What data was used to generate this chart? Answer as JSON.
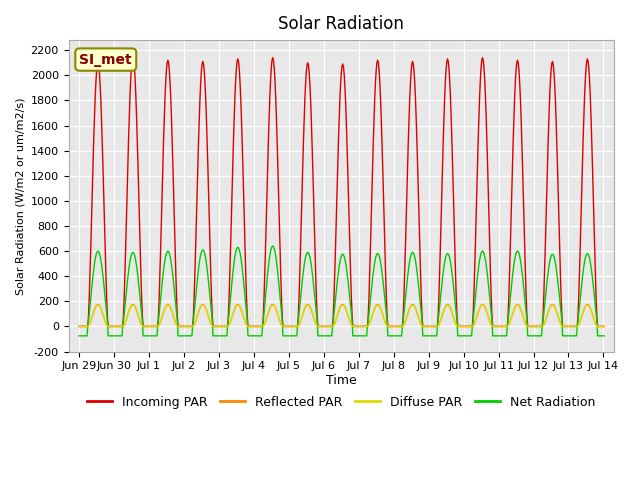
{
  "title": "Solar Radiation",
  "ylabel": "Solar Radiation (W/m2 or um/m2/s)",
  "xlabel": "Time",
  "ylim": [
    -200,
    2280
  ],
  "background_color": "#e8e8e8",
  "grid_color": "#ffffff",
  "label_box_text": "SI_met",
  "label_box_bg": "#ffffcc",
  "label_box_border": "#888800",
  "series": {
    "incoming_par": {
      "label": "Incoming PAR",
      "color": "#dd0000"
    },
    "reflected_par": {
      "label": "Reflected PAR",
      "color": "#ff8800"
    },
    "diffuse_par": {
      "label": "Diffuse PAR",
      "color": "#dddd00"
    },
    "net_radiation": {
      "label": "Net Radiation",
      "color": "#00cc00"
    }
  },
  "xtick_labels": [
    "Jun 29",
    "Jun 30",
    "Jul 1",
    "Jul 2",
    "Jul 3",
    "Jul 4",
    "Jul 5",
    "Jul 6",
    "Jul 7",
    "Jul 8",
    "Jul 9",
    "Jul 10",
    "Jul 11",
    "Jul 12",
    "Jul 13",
    "Jul 14"
  ],
  "ytick_values": [
    -200,
    0,
    200,
    400,
    600,
    800,
    1000,
    1200,
    1400,
    1600,
    1800,
    2000,
    2200
  ],
  "n_days": 15,
  "day_peaks_incoming": [
    2100,
    2150,
    2120,
    2110,
    2130,
    2140,
    2100,
    2090,
    2120,
    2110,
    2130,
    2140,
    2120,
    2110,
    2130
  ],
  "day_peaks_net": [
    600,
    590,
    600,
    610,
    630,
    640,
    590,
    575,
    580,
    590,
    580,
    600,
    600,
    575,
    580
  ],
  "sunrise": 0.25,
  "sunset": 0.833,
  "net_night": -75
}
